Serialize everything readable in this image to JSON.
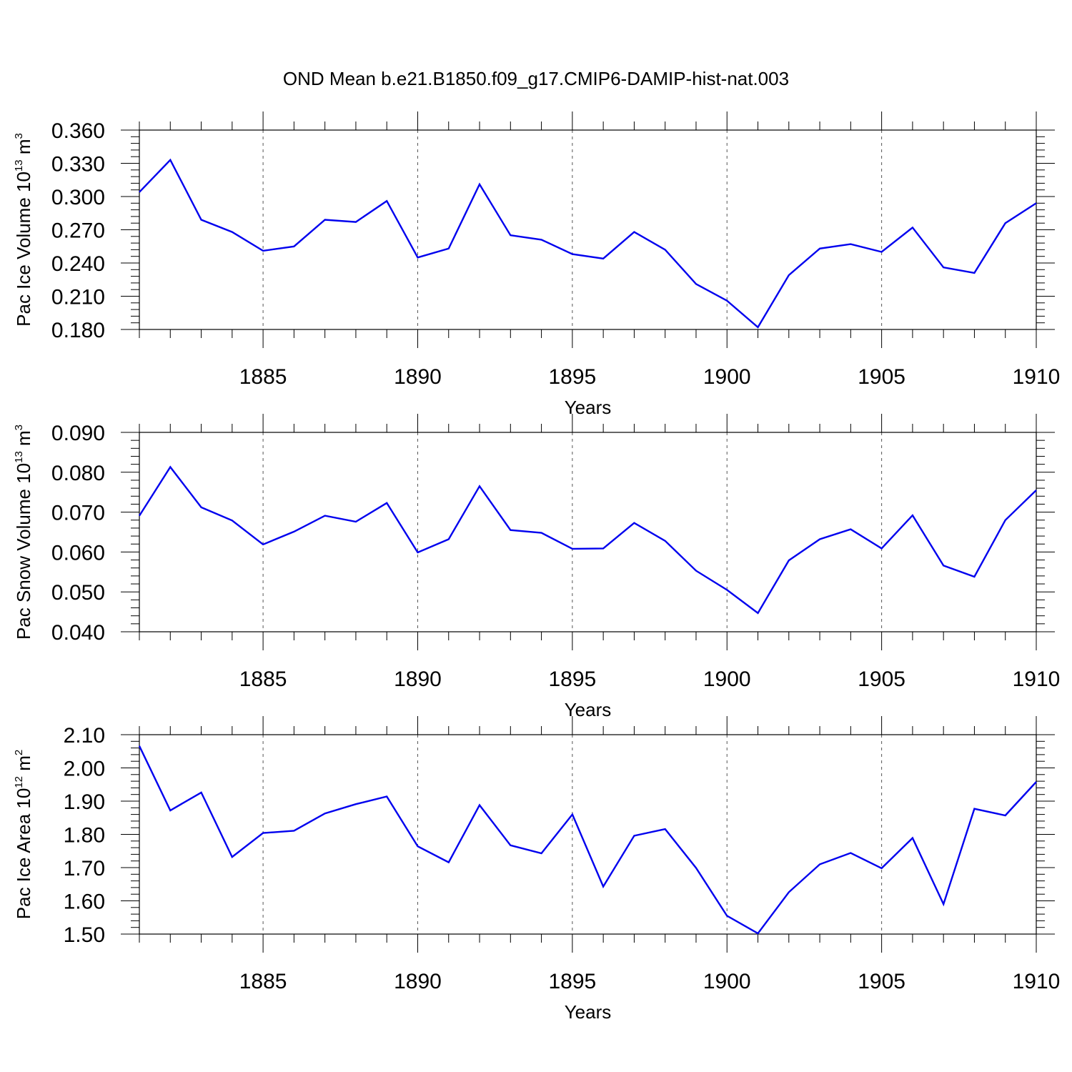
{
  "figure": {
    "title": "OND Mean b.e21.B1850.f09_g17.CMIP6-DAMIP-hist-nat.003"
  },
  "chart_data": [
    {
      "type": "line",
      "title": "",
      "xlabel": "Years",
      "ylabel": {
        "main": "Pac Ice Volume 10",
        "exp": "13",
        "unit": " m",
        "unit_exp": "3"
      },
      "xlim": [
        1881,
        1910
      ],
      "ylim": [
        0.18,
        0.36
      ],
      "xticks": [
        1885,
        1890,
        1895,
        1900,
        1905,
        1910
      ],
      "yticks": [
        0.18,
        0.21,
        0.24,
        0.27,
        0.3,
        0.33,
        0.36
      ],
      "ytick_labels": [
        "0.180",
        "0.210",
        "0.240",
        "0.270",
        "0.300",
        "0.330",
        "0.360"
      ],
      "grid": "vertical dashed at major x ticks",
      "line_color": "#0000ee",
      "series": [
        {
          "x": [
            1881,
            1882,
            1883,
            1884,
            1885,
            1886,
            1887,
            1888,
            1889,
            1890,
            1891,
            1892,
            1893,
            1894,
            1895,
            1896,
            1897,
            1898,
            1899,
            1900,
            1901,
            1902,
            1903,
            1904,
            1905,
            1906,
            1907,
            1908,
            1909,
            1910
          ],
          "values": [
            0.304,
            0.333,
            0.279,
            0.268,
            0.251,
            0.255,
            0.279,
            0.277,
            0.296,
            0.245,
            0.253,
            0.311,
            0.265,
            0.261,
            0.248,
            0.244,
            0.268,
            0.252,
            0.221,
            0.206,
            0.182,
            0.229,
            0.253,
            0.257,
            0.25,
            0.272,
            0.236,
            0.231,
            0.276,
            0.294
          ]
        }
      ]
    },
    {
      "type": "line",
      "title": "",
      "xlabel": "Years",
      "ylabel": {
        "main": "Pac Snow Volume 10",
        "exp": "13",
        "unit": " m",
        "unit_exp": "3"
      },
      "xlim": [
        1881,
        1910
      ],
      "ylim": [
        0.04,
        0.09
      ],
      "xticks": [
        1885,
        1890,
        1895,
        1900,
        1905,
        1910
      ],
      "yticks": [
        0.04,
        0.05,
        0.06,
        0.07,
        0.08,
        0.09
      ],
      "ytick_labels": [
        "0.040",
        "0.050",
        "0.060",
        "0.070",
        "0.080",
        "0.090"
      ],
      "grid": "vertical dashed at major x ticks",
      "line_color": "#0000ee",
      "series": [
        {
          "x": [
            1881,
            1882,
            1883,
            1884,
            1885,
            1886,
            1887,
            1888,
            1889,
            1890,
            1891,
            1892,
            1893,
            1894,
            1895,
            1896,
            1897,
            1898,
            1899,
            1900,
            1901,
            1902,
            1903,
            1904,
            1905,
            1906,
            1907,
            1908,
            1909,
            1910
          ],
          "values": [
            0.0691,
            0.0813,
            0.0712,
            0.0679,
            0.0619,
            0.0651,
            0.0691,
            0.0676,
            0.0723,
            0.0599,
            0.0632,
            0.0765,
            0.0655,
            0.0648,
            0.0608,
            0.0609,
            0.0673,
            0.0628,
            0.0553,
            0.0505,
            0.0447,
            0.0579,
            0.0632,
            0.0657,
            0.0609,
            0.0692,
            0.0566,
            0.0538,
            0.068,
            0.0755
          ]
        }
      ]
    },
    {
      "type": "line",
      "title": "",
      "xlabel": "Years",
      "ylabel": {
        "main": "Pac Ice Area 10",
        "exp": "12",
        "unit": " m",
        "unit_exp": "2"
      },
      "xlim": [
        1881,
        1910
      ],
      "ylim": [
        1.5,
        2.1
      ],
      "xticks": [
        1885,
        1890,
        1895,
        1900,
        1905,
        1910
      ],
      "yticks": [
        1.5,
        1.6,
        1.7,
        1.8,
        1.9,
        2.0,
        2.1
      ],
      "ytick_labels": [
        "1.50",
        "1.60",
        "1.70",
        "1.80",
        "1.90",
        "2.00",
        "2.10"
      ],
      "grid": "vertical dashed at major x ticks",
      "line_color": "#0000ee",
      "series": [
        {
          "x": [
            1881,
            1882,
            1883,
            1884,
            1885,
            1886,
            1887,
            1888,
            1889,
            1890,
            1891,
            1892,
            1893,
            1894,
            1895,
            1896,
            1897,
            1898,
            1899,
            1900,
            1901,
            1902,
            1903,
            1904,
            1905,
            1906,
            1907,
            1908,
            1909,
            1910
          ],
          "values": [
            2.066,
            1.872,
            1.926,
            1.732,
            1.804,
            1.811,
            1.863,
            1.891,
            1.914,
            1.764,
            1.716,
            1.888,
            1.767,
            1.743,
            1.86,
            1.643,
            1.796,
            1.816,
            1.699,
            1.555,
            1.502,
            1.626,
            1.71,
            1.744,
            1.698,
            1.789,
            1.59,
            1.877,
            1.857,
            1.958
          ]
        }
      ]
    }
  ]
}
